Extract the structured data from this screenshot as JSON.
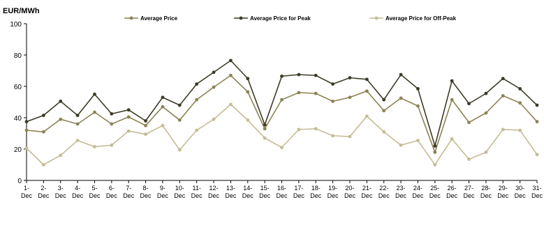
{
  "chart_data": {
    "type": "line",
    "title": "",
    "ylabel": "EUR/MWh",
    "xlabel": "",
    "ylim": [
      0,
      100
    ],
    "yticks": [
      "0",
      "20",
      "40",
      "60",
      "80",
      "100"
    ],
    "grid": false,
    "legend_position": "top",
    "categories": [
      "1-Dec",
      "2-Dec",
      "3-Dec",
      "4-Dec",
      "5-Dec",
      "6-Dec",
      "7-Dec",
      "8-Dec",
      "9-Dec",
      "10-Dec",
      "11-Dec",
      "12-Dec",
      "13-Dec",
      "14-Dec",
      "15-Dec",
      "16-Dec",
      "17-Dec",
      "18-Dec",
      "19-Dec",
      "20-Dec",
      "21-Dec",
      "22-Dec",
      "23-Dec",
      "24-Dec",
      "25-Dec",
      "26-Dec",
      "27-Dec",
      "28-Dec",
      "29-Dec",
      "30-Dec",
      "31-Dec"
    ],
    "series": [
      {
        "name": "Average Price",
        "color": "#8b8355",
        "values": [
          32,
          31,
          39,
          36,
          43.5,
          36,
          40.5,
          35,
          47,
          38.5,
          51.5,
          59.5,
          67,
          56.5,
          33,
          51.5,
          56,
          55.5,
          50.5,
          53,
          57,
          44.5,
          52.5,
          47.5,
          18,
          51.5,
          37,
          43,
          54,
          49.5,
          37.5
        ]
      },
      {
        "name": "Average Price for Peak",
        "color": "#3d3b27",
        "values": [
          37.5,
          41.5,
          50.5,
          41.5,
          55,
          42.5,
          45,
          38,
          53,
          48,
          61.5,
          69,
          76.5,
          65,
          35.5,
          66.5,
          67.5,
          67,
          61.5,
          65.5,
          64.5,
          51.5,
          67.5,
          58.5,
          22,
          63.5,
          49,
          55.5,
          65,
          58.5,
          48
        ]
      },
      {
        "name": "Average Price for Off-Peak",
        "color": "#c4bc95",
        "values": [
          20.5,
          10,
          16,
          25.5,
          21.5,
          22.5,
          31.5,
          29.5,
          35,
          19.5,
          32,
          39,
          48.5,
          38.5,
          27,
          21,
          32.5,
          33,
          28.5,
          28,
          41,
          31,
          22.5,
          25.5,
          10,
          26.5,
          13.5,
          18,
          32.5,
          32,
          16.5
        ]
      }
    ]
  }
}
